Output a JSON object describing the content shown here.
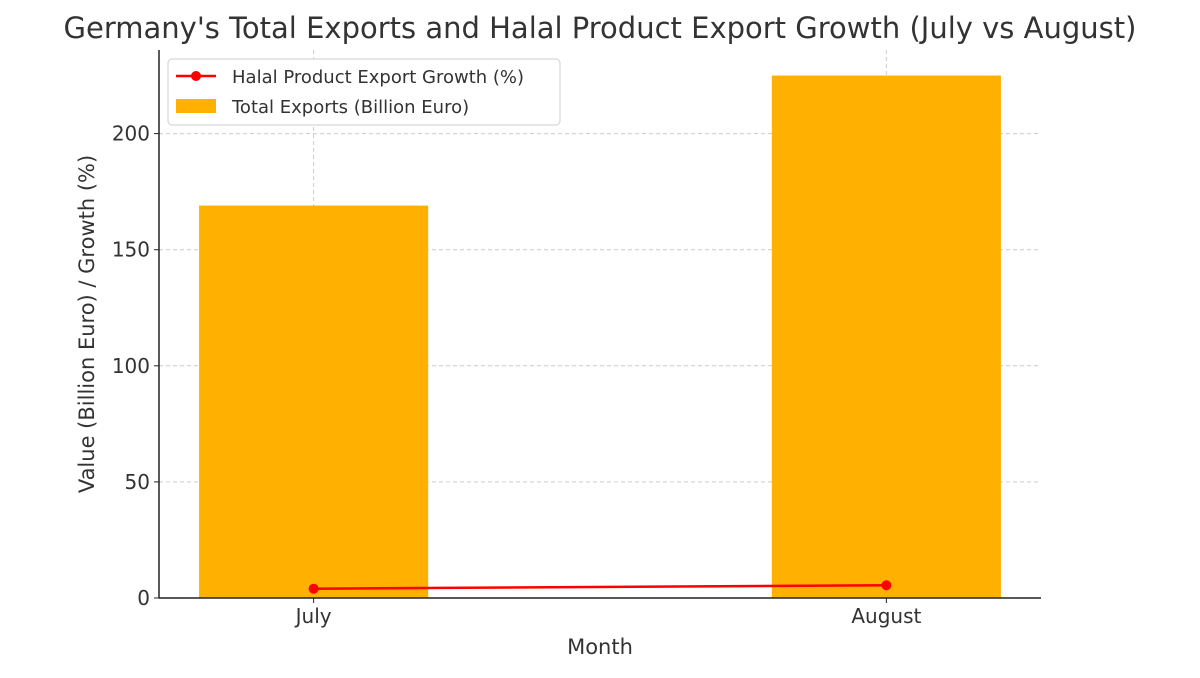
{
  "chart_data": {
    "type": "bar",
    "title": "Germany's Total Exports and Halal Product Export Growth (July vs August)",
    "xlabel": "Month",
    "ylabel": "Value (Billion Euro) / Growth (%)",
    "categories": [
      "July",
      "August"
    ],
    "ylim": [
      0,
      236
    ],
    "yticks": [
      0,
      50,
      100,
      150,
      200
    ],
    "grid": true,
    "legend_position": "top-left",
    "series": [
      {
        "name": "Total Exports (Billion Euro)",
        "type": "bar",
        "color": "#FFB000",
        "values": [
          169,
          225
        ]
      },
      {
        "name": "Halal Product Export Growth (%)",
        "type": "line",
        "color": "#FF0000",
        "marker": "circle",
        "values": [
          4.0,
          5.5
        ]
      }
    ]
  }
}
